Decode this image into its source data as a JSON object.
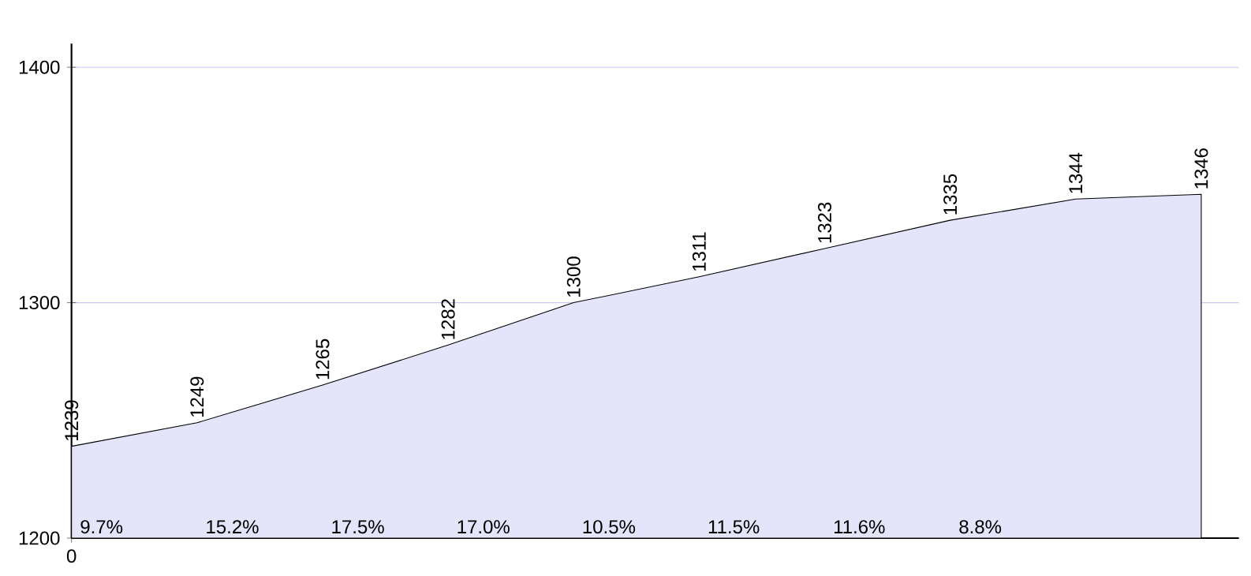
{
  "chart_data": {
    "type": "area",
    "categories": [
      "0",
      null,
      null,
      null,
      null,
      null,
      null,
      null,
      null,
      null
    ],
    "values": [
      1239,
      1249,
      1265,
      1282,
      1300,
      1311,
      1323,
      1335,
      1344,
      1346
    ],
    "data_labels": true,
    "color": "#e4e4fa",
    "ylim": [
      1200,
      1410
    ],
    "yticks": [
      1200,
      1300,
      1400
    ],
    "grid": "y",
    "annotations": [
      "9.7%",
      "15.2%",
      "17.5%",
      "17.0%",
      "10.5%",
      "11.5%",
      "11.6%",
      "8.8%"
    ]
  }
}
